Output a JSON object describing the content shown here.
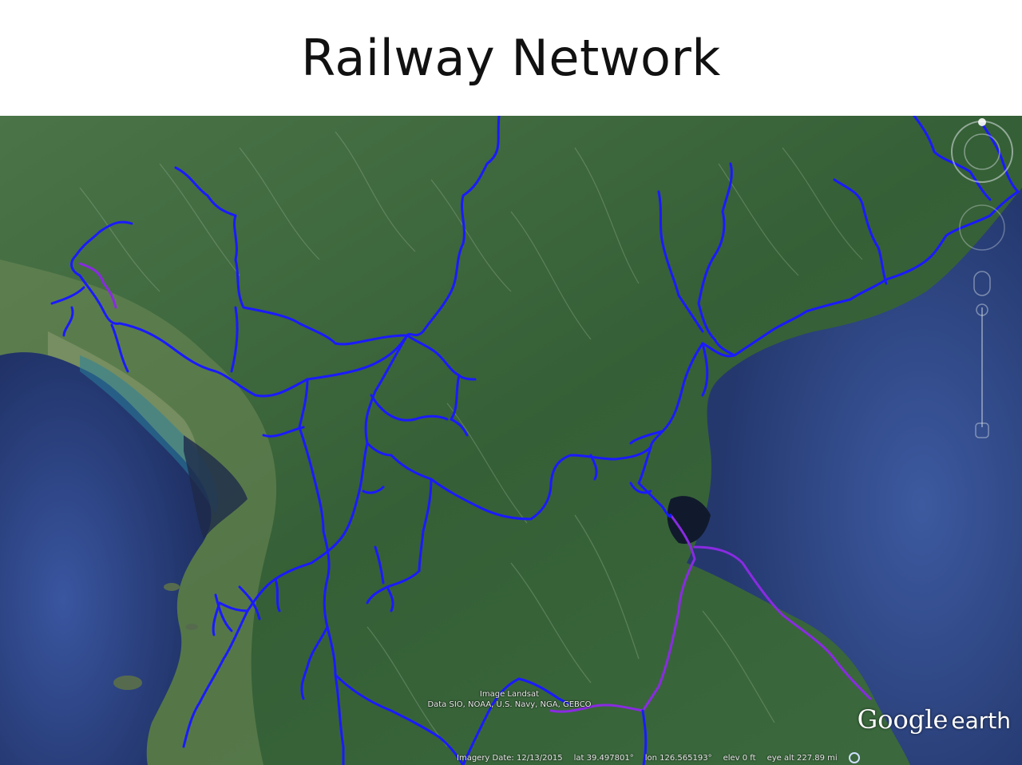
{
  "title": "Railway Network",
  "attribution": {
    "line1": "Image Landsat",
    "line2": "Data SIO, NOAA, U.S. Navy, NGA, GEBCO"
  },
  "logo": {
    "google": "Google",
    "earth": "earth"
  },
  "status": {
    "imagery_date": "Imagery Date: 12/13/2015",
    "lat": "lat  39.497801°",
    "lon": "lon  126.565193°",
    "elev": "elev    0 ft",
    "eye_alt": "eye alt 227.89 mi"
  },
  "colors": {
    "rail_main": "#1a1aff",
    "rail_secondary": "#8a2be2",
    "sea": "#2f4a8a",
    "land": "#3d6b3a"
  },
  "icons": {
    "compass": "compass-ring-icon",
    "zoom": "zoom-slider-icon",
    "status_globe": "globe-icon"
  }
}
